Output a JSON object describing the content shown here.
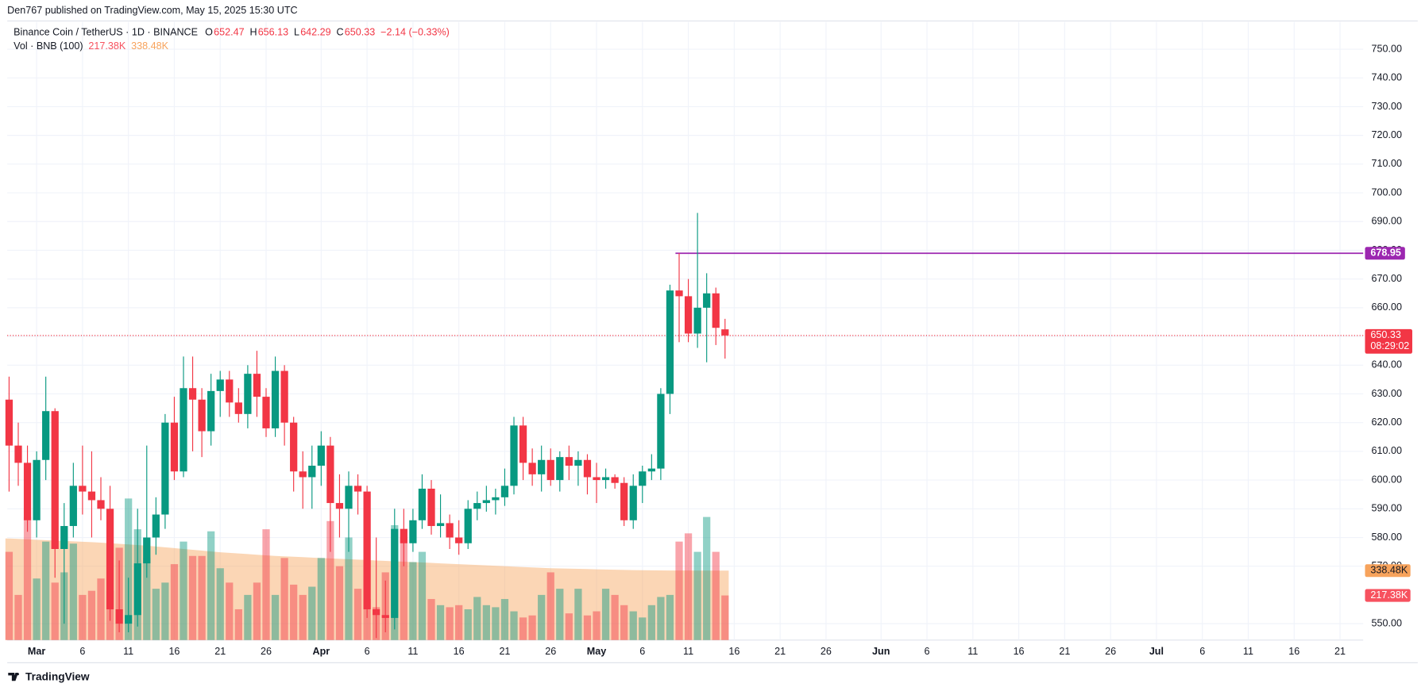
{
  "header": {
    "text": "Den767 published on TradingView.com, May 15, 2025 15:30 UTC"
  },
  "footer": {
    "brand": "TradingView"
  },
  "chart_data": {
    "type": "candlestick",
    "title": "Binance Coin / TetherUS · 1D · BINANCE",
    "legend": [
      {
        "key": "O",
        "value": 652.47
      },
      {
        "key": "H",
        "value": 656.13
      },
      {
        "key": "L",
        "value": 642.29
      },
      {
        "key": "C",
        "value": 650.33
      }
    ],
    "change": {
      "value": -2.14,
      "label": "−2.14 (−0.33%)"
    },
    "up_color": "#089981",
    "down_color": "#f23645",
    "x": [
      "2025-02-26",
      "2025-02-27",
      "2025-02-28",
      "2025-03-01",
      "2025-03-02",
      "2025-03-03",
      "2025-03-04",
      "2025-03-05",
      "2025-03-06",
      "2025-03-07",
      "2025-03-08",
      "2025-03-09",
      "2025-03-10",
      "2025-03-11",
      "2025-03-12",
      "2025-03-13",
      "2025-03-14",
      "2025-03-15",
      "2025-03-16",
      "2025-03-17",
      "2025-03-18",
      "2025-03-19",
      "2025-03-20",
      "2025-03-21",
      "2025-03-22",
      "2025-03-23",
      "2025-03-24",
      "2025-03-25",
      "2025-03-26",
      "2025-03-27",
      "2025-03-28",
      "2025-03-29",
      "2025-03-30",
      "2025-03-31",
      "2025-04-01",
      "2025-04-02",
      "2025-04-03",
      "2025-04-04",
      "2025-04-05",
      "2025-04-06",
      "2025-04-07",
      "2025-04-08",
      "2025-04-09",
      "2025-04-10",
      "2025-04-11",
      "2025-04-12",
      "2025-04-13",
      "2025-04-14",
      "2025-04-15",
      "2025-04-16",
      "2025-04-17",
      "2025-04-18",
      "2025-04-19",
      "2025-04-20",
      "2025-04-21",
      "2025-04-22",
      "2025-04-23",
      "2025-04-24",
      "2025-04-25",
      "2025-04-26",
      "2025-04-27",
      "2025-04-28",
      "2025-04-29",
      "2025-04-30",
      "2025-05-01",
      "2025-05-02",
      "2025-05-03",
      "2025-05-04",
      "2025-05-05",
      "2025-05-06",
      "2025-05-07",
      "2025-05-08",
      "2025-05-09",
      "2025-05-10",
      "2025-05-11",
      "2025-05-12",
      "2025-05-13",
      "2025-05-14",
      "2025-05-15"
    ],
    "open": [
      628,
      612,
      606,
      586,
      607,
      624,
      576,
      584,
      598,
      596,
      593,
      590,
      555,
      550,
      553,
      571,
      580,
      588,
      620,
      603,
      632,
      628,
      617,
      631,
      635,
      627,
      623,
      637,
      629,
      618,
      638,
      620,
      603,
      601,
      605,
      612,
      592,
      590,
      598,
      596,
      555,
      553,
      552,
      583,
      578,
      586,
      597,
      584,
      585,
      580,
      578,
      590,
      592,
      593,
      594,
      598,
      619,
      606,
      602,
      607,
      600,
      608,
      605,
      607,
      601,
      600,
      601,
      599,
      586,
      598,
      603,
      604,
      630,
      666,
      664,
      651,
      660,
      665,
      652.47
    ],
    "high": [
      636,
      620,
      612,
      610,
      636,
      625,
      592,
      606,
      612,
      610,
      601,
      598,
      572,
      566,
      590,
      612,
      594,
      623,
      629,
      643,
      643,
      632,
      637,
      638,
      638,
      632,
      640,
      645,
      632,
      643,
      640,
      622,
      610,
      612,
      617,
      615,
      602,
      603,
      602,
      598,
      580,
      565,
      590,
      590,
      590,
      602,
      600,
      595,
      588,
      586,
      593,
      596,
      598,
      597,
      604,
      622,
      622,
      611,
      612,
      611,
      610,
      612,
      610,
      609,
      606,
      604,
      602,
      601,
      602,
      605,
      609,
      632,
      668,
      679,
      670,
      693,
      672,
      667,
      656.13
    ],
    "low": [
      596,
      598,
      582,
      580,
      600,
      566,
      550,
      580,
      588,
      580,
      586,
      551,
      547,
      547,
      549,
      566,
      574,
      583,
      600,
      601,
      610,
      608,
      612,
      622,
      622,
      620,
      618,
      622,
      615,
      615,
      612,
      596,
      590,
      590,
      598,
      575,
      580,
      575,
      588,
      552,
      545,
      547,
      548,
      570,
      575,
      583,
      581,
      580,
      576,
      574,
      576,
      586,
      589,
      588,
      591,
      595,
      600,
      598,
      596,
      598,
      596,
      600,
      598,
      595,
      592,
      597,
      597,
      584,
      583,
      592,
      600,
      600,
      623,
      648,
      648,
      646,
      641,
      647,
      642.29
    ],
    "close": [
      612,
      606,
      586,
      607,
      624,
      576,
      584,
      598,
      596,
      593,
      590,
      555,
      550,
      553,
      571,
      580,
      588,
      620,
      603,
      632,
      628,
      617,
      631,
      635,
      627,
      623,
      637,
      629,
      618,
      638,
      620,
      603,
      601,
      605,
      612,
      592,
      590,
      598,
      596,
      555,
      553,
      552,
      583,
      578,
      586,
      597,
      584,
      585,
      580,
      578,
      590,
      592,
      593,
      594,
      598,
      619,
      606,
      602,
      607,
      600,
      608,
      605,
      607,
      601,
      600,
      601,
      599,
      586,
      598,
      603,
      604,
      630,
      666,
      664,
      651,
      660,
      665,
      653,
      650.33
    ],
    "volume": [
      430000,
      220000,
      600000,
      300000,
      480000,
      280000,
      330000,
      470000,
      220000,
      240000,
      300000,
      240000,
      450000,
      690000,
      540000,
      400000,
      250000,
      280000,
      370000,
      480000,
      410000,
      410000,
      530000,
      350000,
      280000,
      150000,
      220000,
      280000,
      540000,
      220000,
      400000,
      270000,
      220000,
      260000,
      400000,
      580000,
      360000,
      500000,
      250000,
      200000,
      160000,
      330000,
      560000,
      500000,
      380000,
      430000,
      200000,
      170000,
      160000,
      170000,
      150000,
      210000,
      170000,
      160000,
      200000,
      140000,
      110000,
      120000,
      220000,
      330000,
      250000,
      130000,
      250000,
      120000,
      140000,
      250000,
      220000,
      170000,
      140000,
      110000,
      170000,
      210000,
      220000,
      480000,
      520000,
      430000,
      600000,
      430000,
      217380
    ],
    "volume_ma": [
      495000,
      493000,
      491000,
      489000,
      487000,
      485000,
      483000,
      481000,
      479000,
      477000,
      475000,
      472000,
      469000,
      466000,
      463000,
      460000,
      456000,
      452000,
      448000,
      444000,
      440000,
      436000,
      432000,
      428000,
      425000,
      422000,
      419000,
      416000,
      413000,
      410000,
      408000,
      406000,
      404000,
      402000,
      400000,
      398000,
      396000,
      394000,
      392000,
      390000,
      388000,
      386000,
      384000,
      382000,
      380000,
      378000,
      376000,
      374000,
      372000,
      370000,
      368000,
      366000,
      364000,
      362000,
      360000,
      358000,
      356000,
      354000,
      352000,
      350000,
      349000,
      348000,
      347000,
      346000,
      345000,
      344000,
      343000,
      342000,
      341000,
      340500,
      340000,
      339500,
      339000,
      338900,
      338800,
      338700,
      338600,
      338500,
      338480
    ],
    "volume_name": "Vol · BNB (100)",
    "volume_last": {
      "value": 217380,
      "label": "217.38K"
    },
    "volume_ma_last": {
      "value": 338480,
      "label": "338.48K"
    },
    "volume_color": "#f7525f",
    "volume_ma_color": "#f7a35c",
    "volume_lim": [
      0,
      1000000
    ],
    "xlim": [
      "2025-02-26",
      "2025-07-23"
    ],
    "xticks": [
      {
        "value": "2025-03-01",
        "label": "Mar"
      },
      {
        "value": "2025-03-06",
        "label": "6"
      },
      {
        "value": "2025-03-11",
        "label": "11"
      },
      {
        "value": "2025-03-16",
        "label": "16"
      },
      {
        "value": "2025-03-21",
        "label": "21"
      },
      {
        "value": "2025-03-26",
        "label": "26"
      },
      {
        "value": "2025-04-01",
        "label": "Apr"
      },
      {
        "value": "2025-04-06",
        "label": "6"
      },
      {
        "value": "2025-04-11",
        "label": "11"
      },
      {
        "value": "2025-04-16",
        "label": "16"
      },
      {
        "value": "2025-04-21",
        "label": "21"
      },
      {
        "value": "2025-04-26",
        "label": "26"
      },
      {
        "value": "2025-05-01",
        "label": "May"
      },
      {
        "value": "2025-05-06",
        "label": "6"
      },
      {
        "value": "2025-05-11",
        "label": "11"
      },
      {
        "value": "2025-05-16",
        "label": "16"
      },
      {
        "value": "2025-05-21",
        "label": "21"
      },
      {
        "value": "2025-05-26",
        "label": "26"
      },
      {
        "value": "2025-06-01",
        "label": "Jun"
      },
      {
        "value": "2025-06-06",
        "label": "6"
      },
      {
        "value": "2025-06-11",
        "label": "11"
      },
      {
        "value": "2025-06-16",
        "label": "16"
      },
      {
        "value": "2025-06-21",
        "label": "21"
      },
      {
        "value": "2025-06-26",
        "label": "26"
      },
      {
        "value": "2025-07-01",
        "label": "Jul"
      },
      {
        "value": "2025-07-06",
        "label": "6"
      },
      {
        "value": "2025-07-11",
        "label": "11"
      },
      {
        "value": "2025-07-16",
        "label": "16"
      },
      {
        "value": "2025-07-21",
        "label": "21"
      }
    ],
    "ylim": [
      544.3,
      759.5
    ],
    "yticks": [
      {
        "value": 550,
        "label": "550.00"
      },
      {
        "value": 570,
        "label": "570.00"
      },
      {
        "value": 580,
        "label": "580.00"
      },
      {
        "value": 590,
        "label": "590.00"
      },
      {
        "value": 600,
        "label": "600.00"
      },
      {
        "value": 610,
        "label": "610.00"
      },
      {
        "value": 620,
        "label": "620.00"
      },
      {
        "value": 630,
        "label": "630.00"
      },
      {
        "value": 640,
        "label": "640.00"
      },
      {
        "value": 650,
        "label": "650.00"
      },
      {
        "value": 660,
        "label": "660.00"
      },
      {
        "value": 670,
        "label": "670.00"
      },
      {
        "value": 680,
        "label": "680.00"
      },
      {
        "value": 690,
        "label": "690.00"
      },
      {
        "value": 700,
        "label": "700.00"
      },
      {
        "value": 710,
        "label": "710.00"
      },
      {
        "value": 720,
        "label": "720.00"
      },
      {
        "value": 730,
        "label": "730.00"
      },
      {
        "value": 740,
        "label": "740.00"
      },
      {
        "value": 750,
        "label": "750.00"
      }
    ],
    "grid": true,
    "lines": [
      {
        "value": 678.95,
        "start": "2025-05-10",
        "color": "#9c27b0"
      }
    ],
    "last_price": {
      "value": 650.33,
      "color": "#f23645"
    },
    "countdown": "08:29:02"
  }
}
